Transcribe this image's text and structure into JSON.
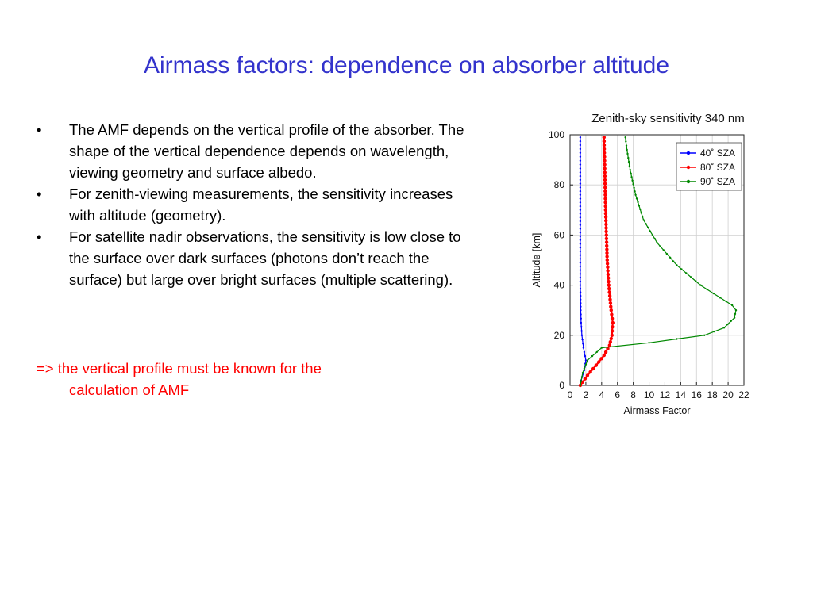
{
  "slide": {
    "title": "Airmass factors: dependence on absorber altitude",
    "bullet_marker": "•",
    "bullets": [
      "The AMF depends on the vertical profile of the absorber. The shape of the vertical dependence depends on wavelength, viewing geometry and surface albedo.",
      "For zenith-viewing measurements, the sensitivity increases with altitude (geometry).",
      "For satellite nadir observations, the sensitivity is low close to the surface over dark surfaces (photons don’t reach the surface) but large over bright surfaces (multiple scattering)."
    ],
    "conclusion": {
      "line1": "=> the vertical profile must be known for the",
      "line2": "calculation of AMF"
    }
  },
  "colors": {
    "title": "#3333cc",
    "conclusion": "#ff0000"
  },
  "chart_data": {
    "type": "line",
    "title": "Zenith-sky sensitivity 340 nm",
    "xlabel": "Airmass Factor",
    "ylabel": "Altitude [km]",
    "xlim": [
      0,
      22
    ],
    "ylim": [
      0,
      100
    ],
    "xticks": [
      0,
      2,
      4,
      6,
      8,
      10,
      12,
      14,
      16,
      18,
      20,
      22
    ],
    "yticks": [
      0,
      20,
      40,
      60,
      80,
      100
    ],
    "grid": true,
    "legend_position": "top-right",
    "series": [
      {
        "name": "40˚ SZA",
        "color": "#0000ff",
        "x": [
          1.2,
          1.4,
          1.8,
          2.0,
          1.7,
          1.5,
          1.4,
          1.35,
          1.3,
          1.3,
          1.3,
          1.3,
          1.3
        ],
        "y": [
          0,
          2,
          6,
          10,
          15,
          20,
          25,
          30,
          40,
          55,
          70,
          85,
          99
        ]
      },
      {
        "name": "80˚ SZA",
        "color": "#ff0000",
        "x": [
          1.3,
          2.2,
          3.3,
          4.3,
          5.0,
          5.3,
          5.4,
          5.2,
          4.9,
          4.7,
          4.6,
          4.5,
          4.4,
          4.3
        ],
        "y": [
          0,
          4,
          8,
          12,
          16,
          20,
          25,
          30,
          40,
          50,
          60,
          70,
          85,
          99
        ]
      },
      {
        "name": "90˚ SZA",
        "color": "#008800",
        "x": [
          1.3,
          1.6,
          2.2,
          4.0,
          10.0,
          17.0,
          19.5,
          20.8,
          21.0,
          20.5,
          19.0,
          16.5,
          13.5,
          11.0,
          9.3,
          8.3,
          7.6,
          7.2,
          7.0
        ],
        "y": [
          0,
          5,
          10,
          15,
          17,
          20,
          23,
          27,
          30,
          32,
          35,
          40,
          48,
          57,
          66,
          76,
          86,
          94,
          99
        ]
      }
    ]
  }
}
